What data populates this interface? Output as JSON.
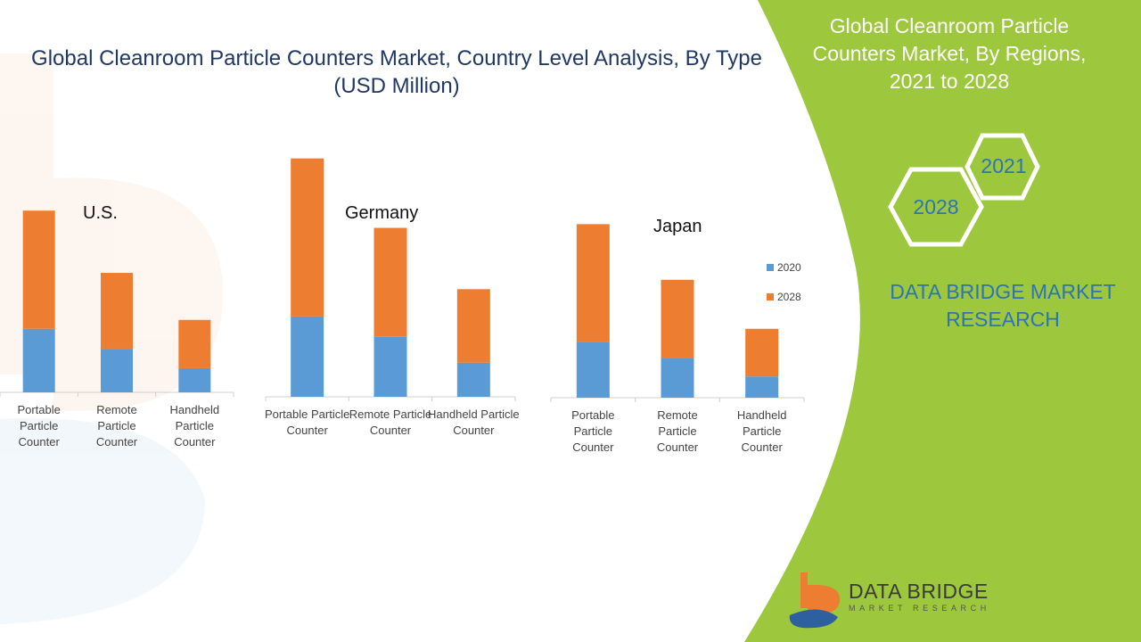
{
  "main_title": "Global Cleanroom Particle Counters Market, Country Level Analysis, By Type (USD Million)",
  "panel": {
    "title": "Global Cleanroom Particle Counters Market, By Regions, 2021 to 2028",
    "hex_years": [
      "2021",
      "2028"
    ],
    "brand": "DATA BRIDGE MARKET RESEARCH",
    "logo_word": "DATA BRIDGE",
    "logo_sub": "MARKET RESEARCH"
  },
  "colors": {
    "series_2020": "#5b9bd5",
    "series_2028": "#ed7d31",
    "panel_green": "#9dc73c",
    "axis": "#d0d0d0"
  },
  "chart_data": [
    {
      "type": "bar",
      "stacked": true,
      "title": "U.S.",
      "categories": [
        "Portable Particle Counter",
        "Remote Particle Counter",
        "Handheld Particle Counter"
      ],
      "series": [
        {
          "name": "2020",
          "values": [
            50,
            34,
            19
          ]
        },
        {
          "name": "2028",
          "values": [
            93,
            60,
            38
          ]
        }
      ],
      "ylim": [
        0,
        160
      ]
    },
    {
      "type": "bar",
      "stacked": true,
      "title": "Germany",
      "categories": [
        "Portable Particle Counter",
        "Remote Particle Counter",
        "Handheld Particle Counter"
      ],
      "series": [
        {
          "name": "2020",
          "values": [
            59,
            44,
            25
          ]
        },
        {
          "name": "2028",
          "values": [
            116,
            80,
            54
          ]
        }
      ],
      "ylim": [
        0,
        180
      ]
    },
    {
      "type": "bar",
      "stacked": true,
      "title": "Japan",
      "categories": [
        "Portable Particle Counter",
        "Remote Particle Counter",
        "Handheld Particle Counter"
      ],
      "series": [
        {
          "name": "2020",
          "values": [
            42,
            30,
            16
          ]
        },
        {
          "name": "2028",
          "values": [
            89,
            59,
            36
          ]
        }
      ],
      "ylim": [
        0,
        140
      ],
      "legend": "right",
      "legend_entries": [
        "2020",
        "2028"
      ]
    }
  ]
}
